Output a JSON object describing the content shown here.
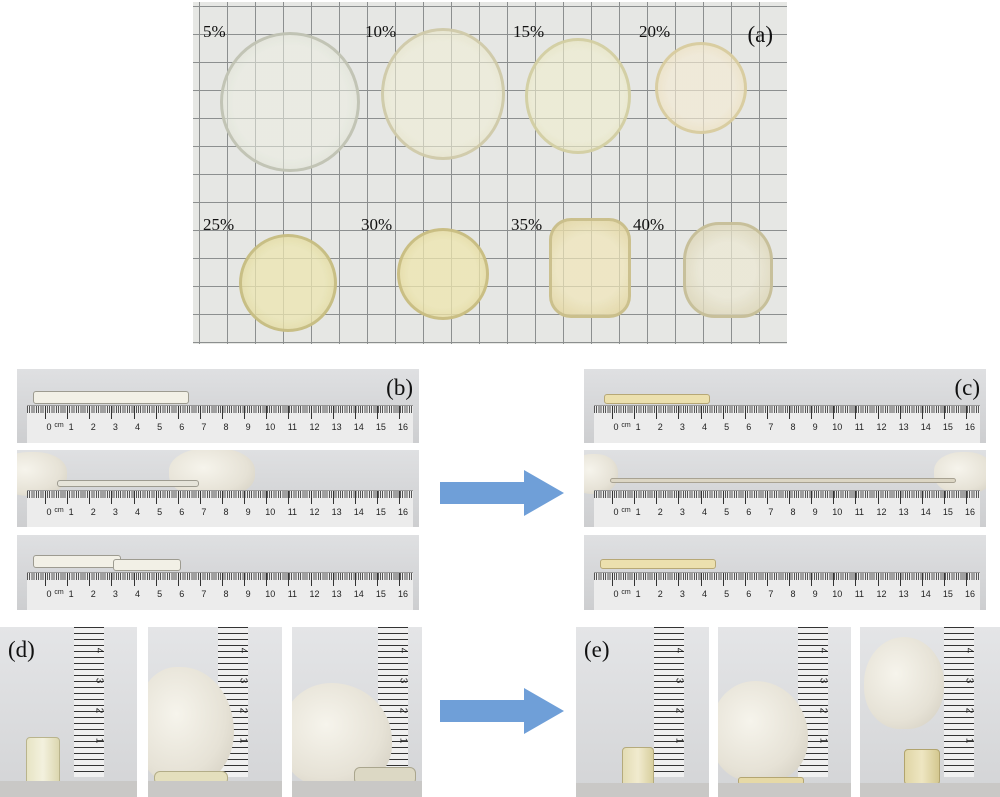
{
  "panel_a": {
    "label": "(a)",
    "percent_labels": [
      "5%",
      "10%",
      "15%",
      "20%",
      "25%",
      "30%",
      "35%",
      "40%"
    ]
  },
  "panel_b": {
    "label": "(b)"
  },
  "panel_c": {
    "label": "(c)"
  },
  "panel_d": {
    "label": "(d)"
  },
  "panel_e": {
    "label": "(e)"
  },
  "ruler": {
    "unit": "cm",
    "ticks": [
      "0",
      "1",
      "2",
      "3",
      "4",
      "5",
      "6",
      "7",
      "8",
      "9",
      "10",
      "11",
      "12",
      "13",
      "14",
      "15",
      "16"
    ]
  },
  "vruler": {
    "unit": "cm",
    "ticks": [
      "1",
      "2",
      "3",
      "4"
    ]
  },
  "colors": {
    "arrow": "#6f9fd8",
    "gel": "#ede3b8",
    "grid_line": "#8c8f8f"
  }
}
